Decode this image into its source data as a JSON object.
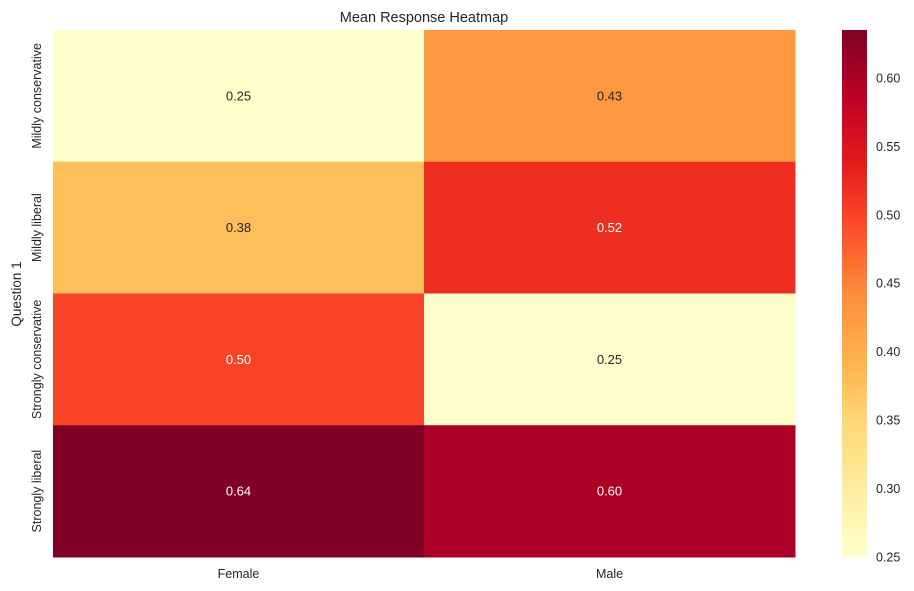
{
  "chart_data": {
    "type": "heatmap",
    "title": "Mean Response Heatmap",
    "xlabel": "",
    "ylabel": "Question 1",
    "x_categories": [
      "Female",
      "Male"
    ],
    "y_categories": [
      "Mildly conservative",
      "Mildly liberal",
      "Strongly conservative",
      "Strongly liberal"
    ],
    "values": [
      [
        0.25,
        0.43
      ],
      [
        0.38,
        0.52
      ],
      [
        0.5,
        0.25
      ],
      [
        0.64,
        0.6
      ]
    ],
    "value_labels": [
      [
        "0.25",
        "0.43"
      ],
      [
        "0.38",
        "0.52"
      ],
      [
        "0.50",
        "0.25"
      ],
      [
        "0.64",
        "0.60"
      ]
    ],
    "colormap": "YlOrRd",
    "color_range": [
      0.25,
      0.635
    ],
    "colorbar_ticks": [
      0.25,
      0.3,
      0.35,
      0.4,
      0.45,
      0.5,
      0.55,
      0.6
    ],
    "colorbar_tick_labels": [
      "0.25",
      "0.30",
      "0.35",
      "0.40",
      "0.45",
      "0.50",
      "0.55",
      "0.60"
    ],
    "colormap_stops": [
      "#ffffcc",
      "#ffeda0",
      "#fed976",
      "#feb24c",
      "#fd8d3c",
      "#fc4e2a",
      "#e31a1c",
      "#bd0026",
      "#800026"
    ],
    "grid": false,
    "legend": "colorbar right"
  }
}
